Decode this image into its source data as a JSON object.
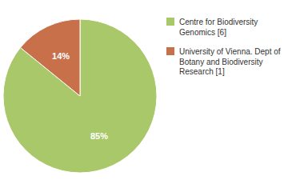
{
  "chart_data": {
    "type": "pie",
    "categories": [
      "Centre for Biodiversity\nGenomics [6]",
      "University of Vienna. Dept of\nBotany and Biodiversity\nResearch [1]"
    ],
    "values": [
      85,
      14
    ],
    "value_labels": [
      "85%",
      "14%"
    ],
    "colors": [
      "#a8c86a",
      "#c8704a"
    ],
    "data_labels": true,
    "legend": "right"
  }
}
